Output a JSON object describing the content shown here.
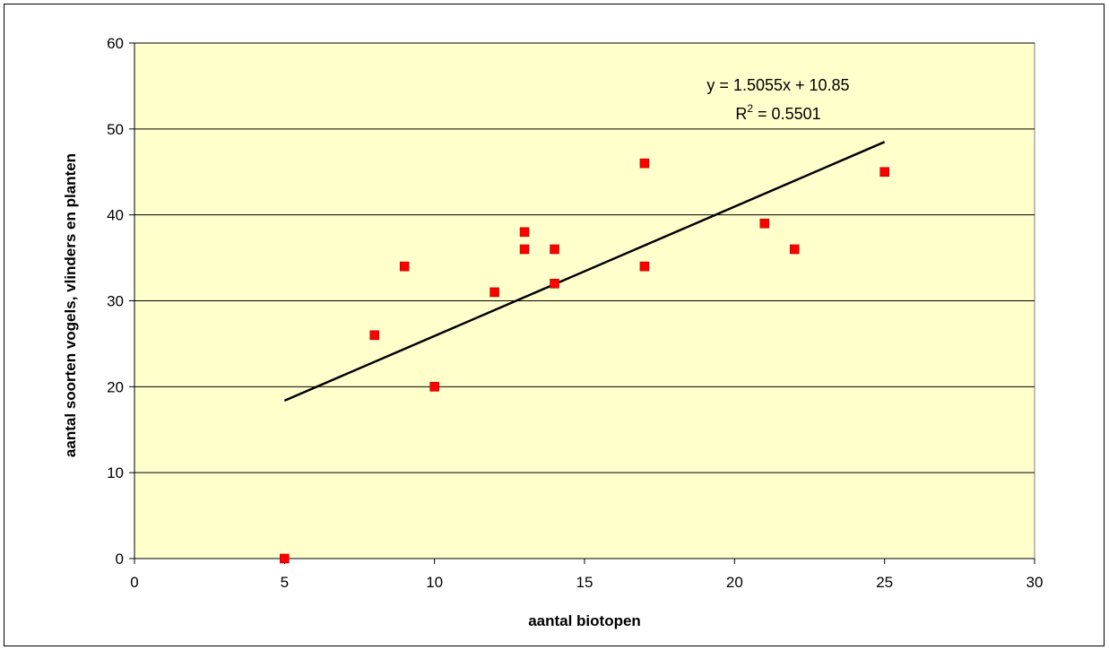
{
  "chart_data": {
    "type": "scatter",
    "xlabel": "aantal biotopen",
    "ylabel": "aantal soorten vogels, vlinders en planten",
    "xlim": [
      0,
      30
    ],
    "ylim": [
      0,
      60
    ],
    "x_ticks": [
      0,
      5,
      10,
      15,
      20,
      25,
      30
    ],
    "y_ticks": [
      0,
      10,
      20,
      30,
      40,
      50,
      60
    ],
    "grid": "horizontal",
    "plot_background": "#FFFFCC",
    "marker_color": "#FF0000",
    "points": [
      {
        "x": 5,
        "y": 0
      },
      {
        "x": 8,
        "y": 26
      },
      {
        "x": 9,
        "y": 34
      },
      {
        "x": 10,
        "y": 20
      },
      {
        "x": 12,
        "y": 31
      },
      {
        "x": 13,
        "y": 38
      },
      {
        "x": 13,
        "y": 36
      },
      {
        "x": 14,
        "y": 36
      },
      {
        "x": 14,
        "y": 32
      },
      {
        "x": 17,
        "y": 46
      },
      {
        "x": 17,
        "y": 34
      },
      {
        "x": 21,
        "y": 39
      },
      {
        "x": 22,
        "y": 36
      },
      {
        "x": 25,
        "y": 45
      }
    ],
    "trendline": {
      "slope": 1.5055,
      "intercept": 10.85,
      "x_range": [
        5,
        25
      ],
      "color": "#000000",
      "equation_label": "y = 1.5055x + 10.85",
      "r2_prefix": "R",
      "r2_exponent": "2",
      "r2_value": " = 0.5501"
    }
  }
}
